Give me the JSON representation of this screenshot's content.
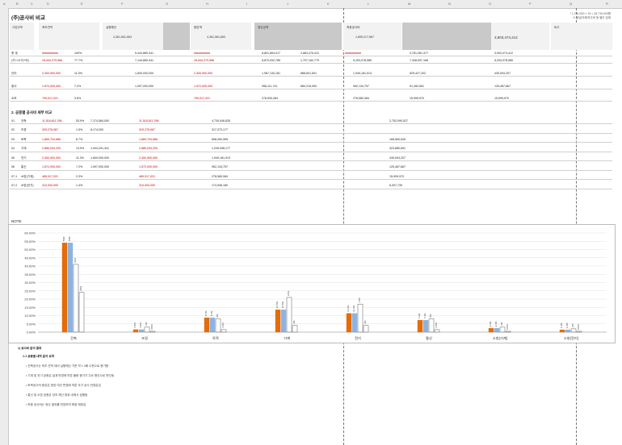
{
  "sheet": {
    "title": "(주)공사비 비교",
    "top_note": [
      "* 1,781,000 × 15 = 26,715,000원",
      "※ 공급자재/외주비 등 별도 집계"
    ],
    "header_groups": [
      "사업규모",
      "최초견적",
      "실행예산",
      "증감액",
      "정산금액",
      "최종공사비",
      "비고"
    ],
    "header_totals": [
      "4,361,561,663",
      "4,361,561,663",
      "1,895,217,667",
      "3,903,474,412"
    ]
  },
  "summary_rows": [
    {
      "label": "총 계",
      "values": [
        "##########",
        "5,444,869,341",
        "##########",
        "8,801,894,017",
        "2,863,475,412",
        "##########",
        "3,781,081,377",
        "3,903,474,412"
      ],
      "pct": "100%"
    },
    {
      "label": "(가+나+다+라)",
      "values": [
        "16,944,279,566",
        "7,144,869,341",
        "16,944,279,566",
        "8,870,932,785",
        "1,707,162,779",
        "5,253,078,585",
        "7,348,057,166",
        "5,253,078,585"
      ],
      "pct": "77.7%"
    },
    {
      "label": "관리",
      "values": [
        "2,300,900,000",
        "1,600,000,000",
        "2,300,900,000",
        "1,967,130,181",
        "888,601,691",
        "1,949,181,913",
        "529,427,202",
        "439,094,207"
      ],
      "pct": "11.3%"
    },
    {
      "label": "중식",
      "values": [
        "1,572,000,000",
        "1,097,000,000",
        "1,572,000,000",
        "956,111,741",
        "850,216,000",
        "952,134,757",
        "91,282,661",
        "125,487,667"
      ],
      "pct": "7.2%"
    },
    {
      "label": "소모",
      "values": [
        "799,917,021",
        "",
        "799,917,021",
        "278,530,084",
        "",
        "278,580,084",
        "15,999,970",
        "15,999,970"
      ],
      "pct": "3.6%"
    }
  ],
  "section_title": "2. 공종별 공사비 세부 비교",
  "detail_rows": [
    {
      "no": "01",
      "label": "건축",
      "values": [
        "11,518,611,766",
        "7,174,584,000",
        "11,518,611,766",
        "4,739,046,635",
        "2,752,090,527"
      ],
      "pct": "53.9%"
    },
    {
      "no": "02",
      "label": "조경",
      "values": [
        "329,278,967",
        "8,174,000",
        "329,278,967",
        "317,373,177",
        ""
      ],
      "pct": "1.5%"
    },
    {
      "no": "03",
      "label": "토목",
      "values": [
        "1,869,704,686",
        "",
        "1,869,704,686",
        "898,050,955",
        "168,560,545"
      ],
      "pct": "8.7%"
    },
    {
      "no": "04",
      "label": "기계",
      "values": [
        "2,889,294,293",
        "1,944,291,341",
        "2,889,294,293",
        "1,249,098,177",
        "323,880,691"
      ],
      "pct": "13.5%"
    },
    {
      "no": "05",
      "label": "전기",
      "values": [
        "2,300,900,000",
        "1,600,000,000",
        "2,300,900,000",
        "1,949,181,913",
        "439,094,207"
      ],
      "pct": "11.3%"
    },
    {
      "no": "06",
      "label": "통신",
      "values": [
        "1,572,000,000",
        "1,097,000,000",
        "1,572,000,000",
        "952,134,757",
        "125,487,667"
      ],
      "pct": "7.2%"
    },
    {
      "no": "07-1",
      "label": "소방(기계)",
      "values": [
        "489,917,021",
        "",
        "489,917,021",
        "278,580,084",
        "15,999,970"
      ],
      "pct": "2.3%"
    },
    {
      "no": "07-2",
      "label": "소방(전기)",
      "values": [
        "310,000,000",
        "",
        "310,000,000",
        "174,006,180",
        "6,097,739"
      ],
      "pct": "1.4%"
    }
  ],
  "note_title": "NOTE",
  "chart_data": {
    "type": "bar",
    "title": "",
    "categories": [
      "건축",
      "조경",
      "토목",
      "기계",
      "전기",
      "통신",
      "소방(기계)",
      "소방(전기)"
    ],
    "series": [
      {
        "name": "최초견적",
        "color": "#e46c0a",
        "values": [
          54,
          1.5,
          8.7,
          13.5,
          11.3,
          7.2,
          2.3,
          1.4
        ]
      },
      {
        "name": "실행예산",
        "color": "#8db3e2",
        "values": [
          54,
          1.5,
          8.7,
          13.5,
          11.3,
          7.2,
          2.3,
          1.4
        ]
      },
      {
        "name": "정산금액",
        "color": "#ffffff",
        "values": [
          41,
          3,
          8,
          21,
          17,
          8,
          3,
          2
        ]
      },
      {
        "name": "최종공사비",
        "color": "#ffffff",
        "values": [
          24,
          0.5,
          1.5,
          4,
          4,
          1.5,
          0.5,
          0.5
        ]
      }
    ],
    "ylim": [
      0,
      60
    ],
    "yticks": [
      "0.00%",
      "5.00%",
      "10.00%",
      "15.00%",
      "20.00%",
      "25.00%",
      "30.00%",
      "35.00%",
      "40.00%",
      "45.00%",
      "50.00%",
      "55.00%",
      "60.00%"
    ],
    "xlabel": "",
    "ylabel": ""
  },
  "memo": {
    "heading": "1) 공사비 분석 결과",
    "subheading": "1-1 공종별 내역 분석 요약",
    "lines": [
      "• 건축공사는 최초 견적 대비 실행예산 기준 약 1.4배 수준으로 증가함",
      "• 기계 및 전기 공종은 설계 변경에 따른 물량 증가가 주요 원인으로 판단됨",
      "• 토목공사의 증감은 현장 여건 변경에 따른 추가 공사 반영분임",
      "• 통신 및 소방 공종은 당초 예산 범위 내에서 집행됨",
      "• 최종 공사비는 정산 결과를 반영하여 확정 예정임"
    ]
  }
}
